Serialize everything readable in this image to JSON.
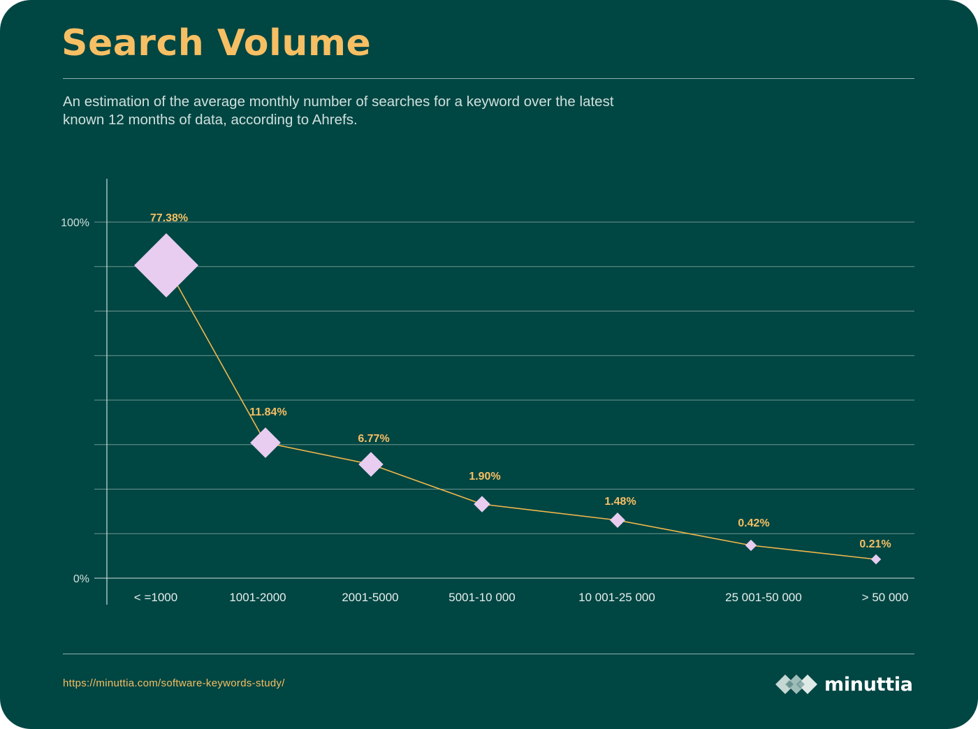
{
  "header": {
    "title": "Search Volume",
    "subtitle": "An estimation of the average monthly number of searches for a keyword over the latest known 12 months of data, according to Ahrefs."
  },
  "footer": {
    "source_url": "https://minuttia.com/software-keywords-study/",
    "brand": "minuttia"
  },
  "colors": {
    "background": "#004643",
    "accent": "#f7bf63",
    "marker": "#e8cdf0",
    "line": "#f2b84b",
    "grid": "#6f9590"
  },
  "chart_data": {
    "type": "line",
    "marker": "diamond",
    "categories": [
      "< =1000",
      "1001-2000",
      "2001-5000",
      "5001-10 000",
      "10 001-25 000",
      "25 001-50 000",
      "> 50 000"
    ],
    "values": [
      77.38,
      11.84,
      6.77,
      1.9,
      1.48,
      0.42,
      0.21
    ],
    "data_labels": [
      "77.38%",
      "11.84%",
      "6.77%",
      "1.90%",
      "1.48%",
      "0.42%",
      "0.21%"
    ],
    "y_ticks": [
      "100%",
      "0%"
    ],
    "ylim": [
      0,
      100
    ],
    "grid": true,
    "xlabel": "",
    "ylabel": ""
  }
}
